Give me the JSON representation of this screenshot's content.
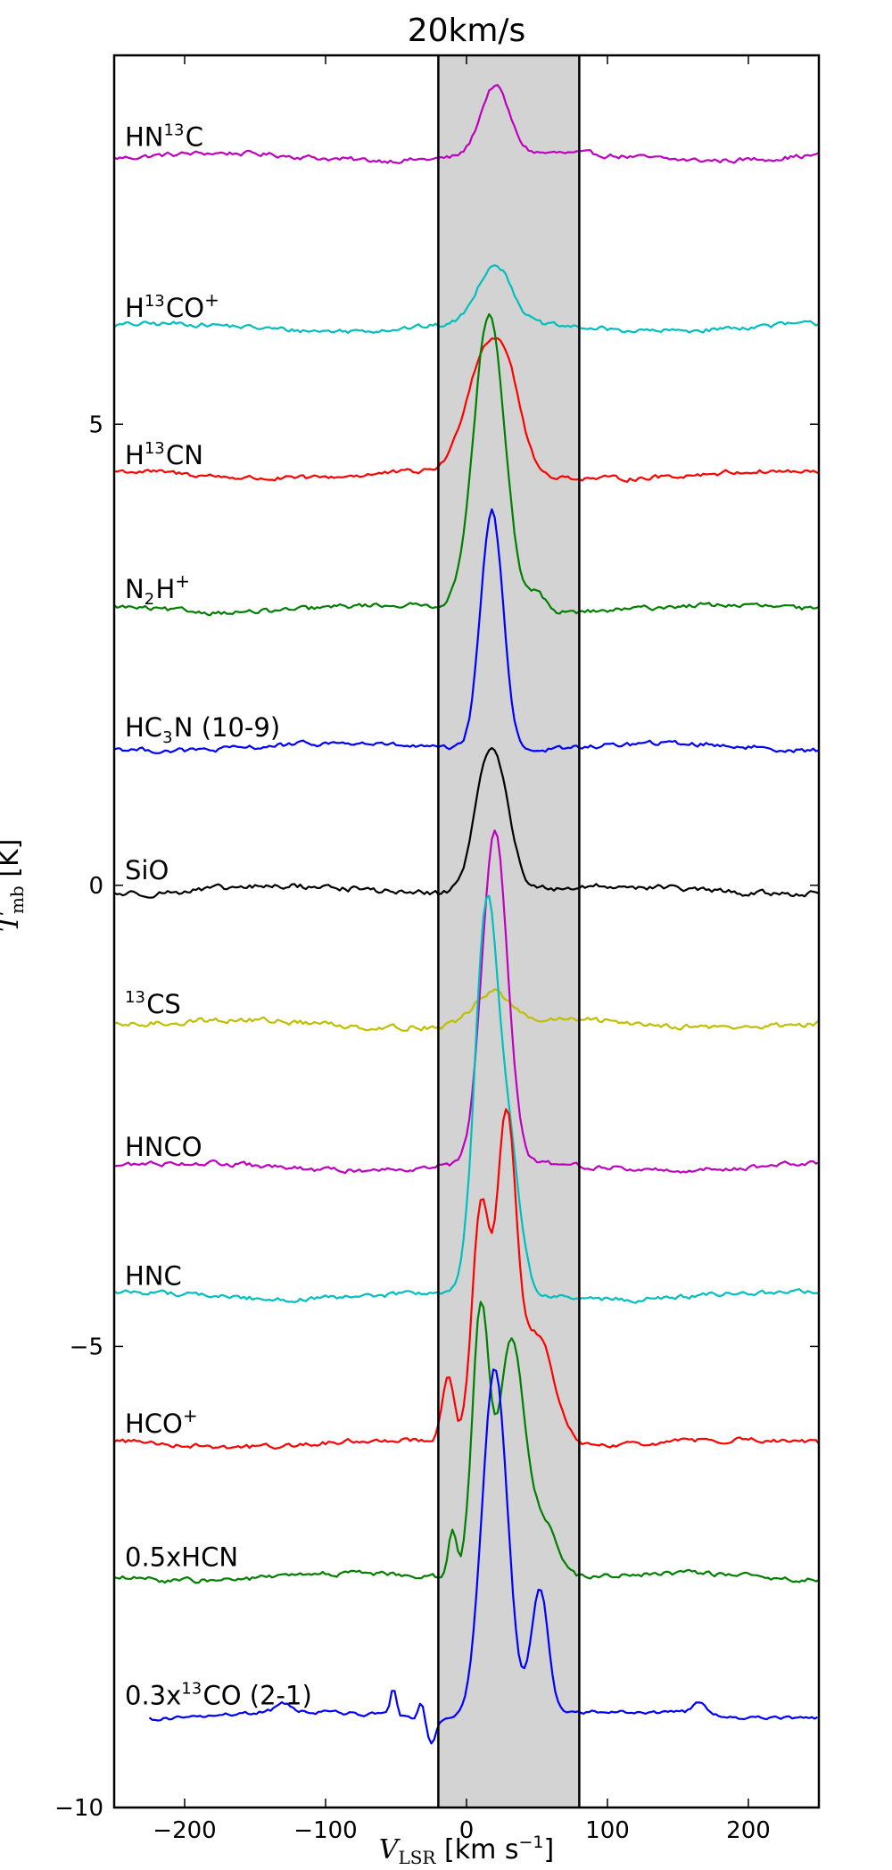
{
  "chart_data": {
    "type": "line",
    "title": "20km/s",
    "xlabel": "V_LSR [km s^-1]",
    "xlabel_parts": {
      "main": "V",
      "sub": "LSR",
      "rest": " [km s",
      "sup": "−1",
      "end": "]"
    },
    "ylabel": "T_mb [K]",
    "ylabel_parts": {
      "main": "T",
      "sub": "mb",
      "rest": " [K]"
    },
    "xlim": [
      -250,
      250
    ],
    "ylim": [
      -10,
      9
    ],
    "xticks": [
      -200,
      -100,
      0,
      100,
      200
    ],
    "xtick_labels": [
      "−200",
      "−100",
      "0",
      "100",
      "200"
    ],
    "yticks": [
      -10,
      -5,
      0,
      5
    ],
    "ytick_labels": [
      "−10",
      "−5",
      "0",
      "5"
    ],
    "shaded_region": {
      "x": [
        -20,
        80
      ],
      "color": "#d3d3d3"
    },
    "grid": false,
    "legend": "none",
    "series": [
      {
        "name": "HN13C",
        "label_parts": {
          "pre": "HN",
          "sup": "13",
          "post": "C"
        },
        "color": "#bf00bf",
        "baseline": 7.9,
        "peaks": [
          {
            "x": 20,
            "h": 0.75,
            "w": 10
          }
        ],
        "noise": 0.05
      },
      {
        "name": "H13CO+",
        "label_parts": {
          "pre": "H",
          "sup": "13",
          "post": "CO",
          "sup2": "+"
        },
        "color": "#00bfbf",
        "baseline": 6.05,
        "peaks": [
          {
            "x": 20,
            "h": 0.65,
            "w": 12
          }
        ],
        "noise": 0.05
      },
      {
        "name": "H13CN",
        "label_parts": {
          "pre": "H",
          "sup": "13",
          "post": "CN"
        },
        "color": "#ff0000",
        "baseline": 4.45,
        "peaks": [
          {
            "x": 12,
            "h": 1.2,
            "w": 13
          },
          {
            "x": 30,
            "h": 0.8,
            "w": 10
          }
        ],
        "noise": 0.05
      },
      {
        "name": "N2H+",
        "label_parts": {
          "pre": "N",
          "sub": "2",
          "post": "H",
          "sup2": "+"
        },
        "color": "#008000",
        "baseline": 3.0,
        "peaks": [
          {
            "x": 16,
            "h": 3.2,
            "w": 11
          },
          {
            "x": 50,
            "h": 0.2,
            "w": 6
          }
        ],
        "noise": 0.05
      },
      {
        "name": "HC3N (10-9)",
        "label_parts": {
          "pre": "HC",
          "sub": "3",
          "post": "N (10-9)"
        },
        "color": "#0000ff",
        "baseline": 1.5,
        "peaks": [
          {
            "x": 18,
            "h": 2.6,
            "w": 8
          }
        ],
        "noise": 0.05
      },
      {
        "name": "SiO",
        "label_parts": {
          "pre": "SiO"
        },
        "color": "#000000",
        "baseline": -0.05,
        "peaks": [
          {
            "x": 18,
            "h": 1.6,
            "w": 11
          }
        ],
        "noise": 0.06
      },
      {
        "name": "13CS",
        "label_parts": {
          "pre": "",
          "sup": "13",
          "post": "CS"
        },
        "color": "#bfbf00",
        "baseline": -1.5,
        "peaks": [
          {
            "x": 18,
            "h": 0.35,
            "w": 12
          }
        ],
        "noise": 0.06
      },
      {
        "name": "HNCO",
        "label_parts": {
          "pre": "HNCO"
        },
        "color": "#bf00bf",
        "baseline": -3.05,
        "peaks": [
          {
            "x": 20,
            "h": 3.6,
            "w": 9
          }
        ],
        "noise": 0.05
      },
      {
        "name": "HNC",
        "label_parts": {
          "pre": "HNC"
        },
        "color": "#00bfbf",
        "baseline": -4.45,
        "peaks": [
          {
            "x": 14,
            "h": 4.1,
            "w": 8
          },
          {
            "x": 30,
            "h": 1.5,
            "w": 8
          }
        ],
        "noise": 0.05
      },
      {
        "name": "HCO+",
        "label_parts": {
          "pre": "HCO",
          "sup2": "+"
        },
        "color": "#ff0000",
        "baseline": -6.05,
        "peaks": [
          {
            "x": -13,
            "h": 0.7,
            "w": 4
          },
          {
            "x": 10,
            "h": 2.5,
            "w": 6
          },
          {
            "x": 28,
            "h": 3.4,
            "w": 7
          },
          {
            "x": 50,
            "h": 1.2,
            "w": 12
          }
        ],
        "noise": 0.05
      },
      {
        "name": "0.5xHCN",
        "label_parts": {
          "pre": "0.5xHCN"
        },
        "color": "#008000",
        "baseline": -7.5,
        "peaks": [
          {
            "x": -10,
            "h": 0.5,
            "w": 3
          },
          {
            "x": 10,
            "h": 2.9,
            "w": 6
          },
          {
            "x": 32,
            "h": 2.6,
            "w": 9
          },
          {
            "x": 55,
            "h": 0.6,
            "w": 10
          }
        ],
        "noise": 0.05
      },
      {
        "name": "0.3x13CO (2-1)",
        "label_parts": {
          "pre": "0.3x",
          "sup": "13",
          "post": "CO (2-1)"
        },
        "color": "#0000ff",
        "baseline": -9.0,
        "xstart": -225,
        "peaks": [
          {
            "x": -52,
            "h": 0.3,
            "w": 2
          },
          {
            "x": -32,
            "h": 0.2,
            "w": 2
          },
          {
            "x": 20,
            "h": 3.8,
            "w": 9
          },
          {
            "x": 52,
            "h": 1.4,
            "w": 6
          },
          {
            "x": -130,
            "h": 0.1,
            "w": 5
          },
          {
            "x": 165,
            "h": 0.12,
            "w": 5
          }
        ],
        "dips": [
          {
            "x": -25,
            "h": 0.25,
            "w": 3
          }
        ],
        "noise": 0.04
      }
    ]
  }
}
